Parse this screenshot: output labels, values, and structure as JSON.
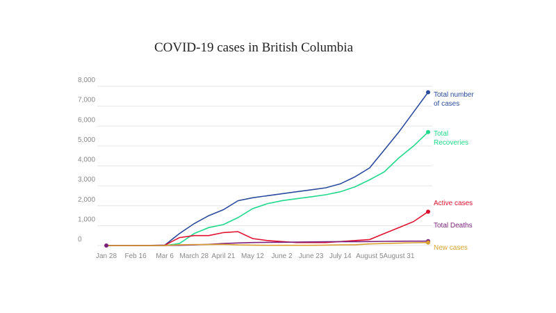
{
  "chart_data": {
    "type": "line",
    "title": "COVID-19 cases in British Columbia",
    "categories": [
      "Jan 28",
      null,
      "Feb 16",
      null,
      "Mar 6",
      null,
      "March 28",
      null,
      "April 21",
      null,
      "May 12",
      null,
      "June 2",
      null,
      "June 23",
      null,
      "July 14",
      null,
      "August 5",
      null,
      "August 31",
      null,
      null
    ],
    "series": [
      {
        "name": "Total number of cases",
        "color": "#2a4a9e",
        "values": [
          0,
          0,
          5,
          8,
          21,
          600,
          1100,
          1500,
          1800,
          2250,
          2400,
          2500,
          2600,
          2700,
          2800,
          2900,
          3100,
          3450,
          3900,
          4800,
          5700,
          6700,
          7700
        ]
      },
      {
        "name": "Total Recoveries",
        "color": "#1ed98a",
        "values": [
          0,
          0,
          0,
          0,
          0,
          100,
          600,
          900,
          1050,
          1400,
          1850,
          2100,
          2250,
          2350,
          2450,
          2550,
          2700,
          2950,
          3300,
          3700,
          4400,
          5000,
          5700
        ]
      },
      {
        "name": "Active cases",
        "color": "#e0102e",
        "values": [
          0,
          0,
          3,
          3,
          13,
          400,
          500,
          500,
          650,
          700,
          350,
          250,
          200,
          150,
          150,
          150,
          200,
          250,
          300,
          600,
          900,
          1200,
          1700
        ]
      },
      {
        "name": "Total Deaths",
        "color": "#7b1e7a",
        "values": [
          0,
          0,
          0,
          0,
          0,
          10,
          30,
          60,
          100,
          130,
          150,
          160,
          165,
          170,
          180,
          190,
          195,
          195,
          200,
          210,
          215,
          220,
          220
        ]
      },
      {
        "name": "New cases",
        "color": "#d9a030",
        "values": [
          0,
          0,
          0,
          0,
          5,
          40,
          50,
          50,
          60,
          30,
          20,
          10,
          10,
          10,
          10,
          20,
          30,
          40,
          80,
          100,
          120,
          140,
          150
        ]
      }
    ],
    "ylim": [
      0,
      8000
    ],
    "yticks": [
      0,
      {
        "value": 1000,
        "label": "1,000"
      },
      {
        "value": 2000,
        "label": "2,000"
      },
      {
        "value": 3000,
        "label": "3,000"
      },
      {
        "value": 4000,
        "label": "4,000"
      },
      {
        "value": 5000,
        "label": "5,000"
      },
      {
        "value": 6000,
        "label": "6,000"
      },
      {
        "value": 7000,
        "label": "7,000"
      },
      {
        "value": 8000,
        "label": "8,000"
      }
    ],
    "grid": true
  }
}
